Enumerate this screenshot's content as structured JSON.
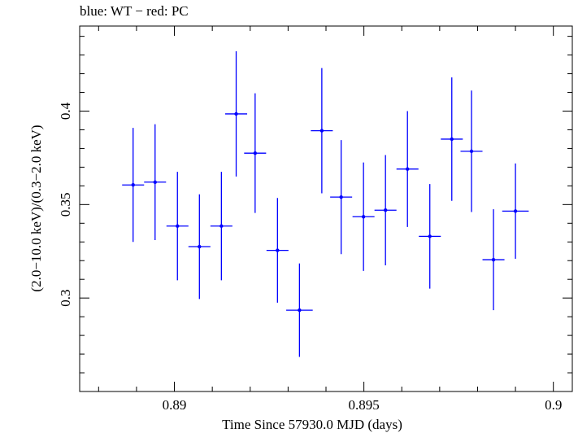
{
  "chart_data": {
    "type": "scatter",
    "title": "blue: WT − red: PC",
    "xlabel": "Time Since 57930.0 MJD (days)",
    "ylabel": "(2.0−10.0 keV)/(0.3−2.0 keV)",
    "xlim": [
      0.8875,
      0.9005
    ],
    "ylim": [
      0.25,
      0.4455
    ],
    "x_major_ticks": [
      0.89,
      0.895,
      0.9
    ],
    "x_tick_labels": [
      "0.89",
      "0.895",
      "0.9"
    ],
    "y_major_ticks": [
      0.3,
      0.35,
      0.4
    ],
    "y_tick_labels": [
      "0.3",
      "0.35",
      "0.4"
    ],
    "grid": false,
    "series": [
      {
        "name": "WT",
        "color": "#0000ff",
        "points": [
          {
            "x": 0.88891,
            "xerr": 0.00029,
            "y": 0.3605,
            "yerr": 0.0305
          },
          {
            "x": 0.88949,
            "xerr": 0.00029,
            "y": 0.362,
            "yerr": 0.031
          },
          {
            "x": 0.89008,
            "xerr": 0.00029,
            "y": 0.3385,
            "yerr": 0.029
          },
          {
            "x": 0.89066,
            "xerr": 0.00029,
            "y": 0.3275,
            "yerr": 0.028
          },
          {
            "x": 0.89124,
            "xerr": 0.00029,
            "y": 0.3385,
            "yerr": 0.029
          },
          {
            "x": 0.89163,
            "xerr": 0.00029,
            "y": 0.3985,
            "yerr": 0.0335
          },
          {
            "x": 0.89213,
            "xerr": 0.00029,
            "y": 0.3775,
            "yerr": 0.032
          },
          {
            "x": 0.89272,
            "xerr": 0.00029,
            "y": 0.3255,
            "yerr": 0.028
          },
          {
            "x": 0.8933,
            "xerr": 0.00035,
            "y": 0.2935,
            "yerr": 0.025
          },
          {
            "x": 0.89389,
            "xerr": 0.00029,
            "y": 0.3895,
            "yerr": 0.0335
          },
          {
            "x": 0.8944,
            "xerr": 0.00029,
            "y": 0.354,
            "yerr": 0.0305
          },
          {
            "x": 0.89499,
            "xerr": 0.00029,
            "y": 0.3435,
            "yerr": 0.029
          },
          {
            "x": 0.89557,
            "xerr": 0.00029,
            "y": 0.347,
            "yerr": 0.0295
          },
          {
            "x": 0.89615,
            "xerr": 0.00029,
            "y": 0.369,
            "yerr": 0.031
          },
          {
            "x": 0.89674,
            "xerr": 0.00029,
            "y": 0.333,
            "yerr": 0.028
          },
          {
            "x": 0.89732,
            "xerr": 0.00029,
            "y": 0.385,
            "yerr": 0.033
          },
          {
            "x": 0.89784,
            "xerr": 0.00029,
            "y": 0.3785,
            "yerr": 0.0325
          },
          {
            "x": 0.89842,
            "xerr": 0.00029,
            "y": 0.3205,
            "yerr": 0.027
          },
          {
            "x": 0.899,
            "xerr": 0.00035,
            "y": 0.3465,
            "yerr": 0.0255
          }
        ]
      }
    ]
  }
}
